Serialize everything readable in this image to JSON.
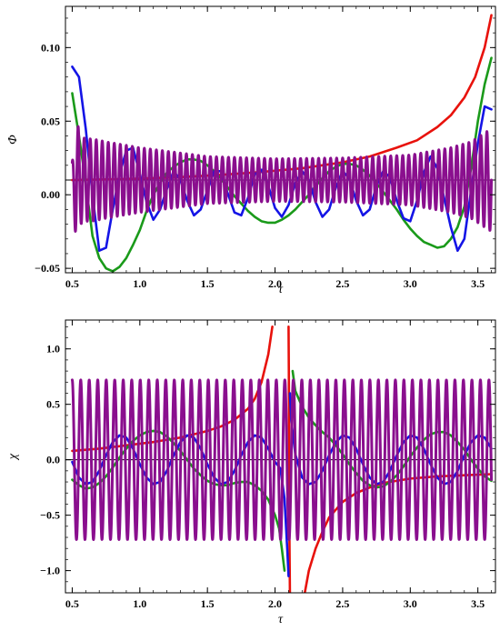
{
  "chart_data": [
    {
      "type": "line",
      "xlabel": "τ",
      "ylabel": "Φ",
      "xlim": [
        0.45,
        3.63
      ],
      "ylim": [
        -0.053,
        0.128
      ],
      "xticks": [
        "0.5",
        "1.0",
        "1.5",
        "2.0",
        "2.5",
        "3.0",
        "3.5"
      ],
      "xtick_values": [
        0.5,
        1.0,
        1.5,
        2.0,
        2.5,
        3.0,
        3.5
      ],
      "yticks": [
        "−0.05",
        "0.00",
        "0.05",
        "0.10"
      ],
      "ytick_values": [
        -0.05,
        0.0,
        0.05,
        0.1
      ],
      "reference_line": 0.01,
      "series": [
        {
          "color": "#e8120c",
          "x": [
            0.5,
            0.8,
            1.0,
            1.3,
            1.6,
            1.9,
            2.2,
            2.5,
            2.7,
            2.9,
            3.05,
            3.2,
            3.3,
            3.4,
            3.48,
            3.55,
            3.6
          ],
          "y": [
            0.01,
            0.0105,
            0.011,
            0.012,
            0.0135,
            0.0155,
            0.018,
            0.022,
            0.026,
            0.032,
            0.037,
            0.046,
            0.054,
            0.066,
            0.08,
            0.1,
            0.122
          ]
        },
        {
          "color": "#1a9a1a",
          "x": [
            0.5,
            0.55,
            0.6,
            0.65,
            0.7,
            0.75,
            0.8,
            0.85,
            0.9,
            0.95,
            1.0,
            1.05,
            1.1,
            1.15,
            1.2,
            1.25,
            1.3,
            1.35,
            1.4,
            1.45,
            1.5,
            1.55,
            1.6,
            1.65,
            1.7,
            1.75,
            1.8,
            1.85,
            1.9,
            1.95,
            2.0,
            2.05,
            2.1,
            2.15,
            2.2,
            2.25,
            2.3,
            2.35,
            2.4,
            2.45,
            2.5,
            2.55,
            2.6,
            2.65,
            2.7,
            2.75,
            2.8,
            2.85,
            2.9,
            2.95,
            3.0,
            3.05,
            3.1,
            3.15,
            3.2,
            3.25,
            3.3,
            3.35,
            3.4,
            3.45,
            3.5,
            3.55,
            3.6
          ],
          "y": [
            0.069,
            0.04,
            0.008,
            -0.028,
            -0.043,
            -0.05,
            -0.052,
            -0.049,
            -0.043,
            -0.034,
            -0.024,
            -0.011,
            0.0,
            0.008,
            0.015,
            0.019,
            0.022,
            0.024,
            0.024,
            0.023,
            0.02,
            0.016,
            0.011,
            0.005,
            -0.001,
            -0.006,
            -0.011,
            -0.015,
            -0.018,
            -0.019,
            -0.019,
            -0.017,
            -0.014,
            -0.01,
            -0.005,
            0.0,
            0.006,
            0.011,
            0.016,
            0.019,
            0.021,
            0.021,
            0.02,
            0.017,
            0.013,
            0.008,
            0.002,
            -0.004,
            -0.01,
            -0.017,
            -0.023,
            -0.028,
            -0.032,
            -0.034,
            -0.036,
            -0.035,
            -0.03,
            -0.022,
            -0.008,
            0.018,
            0.05,
            0.075,
            0.093
          ]
        },
        {
          "color": "#1414e6",
          "x": [
            0.5,
            0.55,
            0.6,
            0.65,
            0.7,
            0.75,
            0.8,
            0.85,
            0.9,
            0.95,
            1.0,
            1.05,
            1.1,
            1.15,
            1.2,
            1.25,
            1.3,
            1.35,
            1.4,
            1.45,
            1.5,
            1.55,
            1.6,
            1.65,
            1.7,
            1.75,
            1.8,
            1.85,
            1.9,
            1.95,
            2.0,
            2.05,
            2.1,
            2.15,
            2.2,
            2.25,
            2.3,
            2.35,
            2.4,
            2.45,
            2.5,
            2.55,
            2.6,
            2.65,
            2.7,
            2.75,
            2.8,
            2.85,
            2.9,
            2.95,
            3.0,
            3.05,
            3.1,
            3.15,
            3.2,
            3.25,
            3.3,
            3.35,
            3.4,
            3.45,
            3.5,
            3.55,
            3.6
          ],
          "y": [
            0.087,
            0.08,
            0.045,
            0.0,
            -0.038,
            -0.036,
            -0.01,
            0.014,
            0.03,
            0.032,
            0.014,
            -0.005,
            -0.017,
            -0.01,
            0.004,
            0.016,
            0.01,
            -0.004,
            -0.014,
            -0.01,
            0.003,
            0.016,
            0.016,
            0.001,
            -0.012,
            -0.014,
            -0.002,
            0.014,
            0.017,
            0.006,
            -0.009,
            -0.015,
            -0.007,
            0.008,
            0.016,
            0.01,
            -0.005,
            -0.015,
            -0.01,
            0.005,
            0.016,
            0.011,
            -0.004,
            -0.014,
            -0.01,
            0.006,
            0.016,
            0.012,
            -0.004,
            -0.016,
            -0.018,
            -0.004,
            0.015,
            0.026,
            0.018,
            -0.002,
            -0.022,
            -0.038,
            -0.03,
            0.003,
            0.035,
            0.06,
            0.058
          ]
        },
        {
          "color": "#8a0f8e",
          "x": [
            0.5,
            0.53,
            0.56,
            0.6,
            0.65,
            0.75,
            1.0,
            1.5,
            2.0,
            2.5,
            3.0,
            3.3,
            3.45,
            3.55,
            3.6
          ],
          "y": [
            0.012,
            0.042,
            0.03,
            0.028,
            0.028,
            0.026,
            0.022,
            0.016,
            0.0145,
            0.015,
            0.017,
            0.022,
            0.026,
            0.032,
            0.035
          ],
          "osc": true,
          "offset": 0.01,
          "freq": 22.5
        }
      ]
    },
    {
      "type": "line",
      "xlabel": "τ",
      "ylabel": "χ",
      "xlim": [
        0.45,
        3.63
      ],
      "ylim": [
        -1.2,
        1.26
      ],
      "xticks": [
        "0.5",
        "1.0",
        "1.5",
        "2.0",
        "2.5",
        "3.0",
        "3.5"
      ],
      "xtick_values": [
        0.5,
        1.0,
        1.5,
        2.0,
        2.5,
        3.0,
        3.5
      ],
      "yticks": [
        "−1.0",
        "−0.5",
        "0.0",
        "0.5",
        "1.0"
      ],
      "ytick_values": [
        -1.0,
        -0.5,
        0.0,
        0.5,
        1.0
      ],
      "reference_line": 0.0,
      "series": [
        {
          "color": "#e8120c",
          "x": [
            0.5,
            0.7,
            0.9,
            1.1,
            1.3,
            1.5,
            1.6,
            1.7,
            1.8,
            1.85,
            1.9,
            1.95,
            1.98
          ],
          "y": [
            0.08,
            0.1,
            0.13,
            0.16,
            0.2,
            0.26,
            0.3,
            0.36,
            0.46,
            0.55,
            0.7,
            0.95,
            1.2
          ]
        },
        {
          "color": "#e8120c",
          "x": [
            2.1,
            2.102,
            2.105,
            2.11
          ],
          "y": [
            1.2,
            0.8,
            -0.5,
            -1.2
          ]
        },
        {
          "color": "#e8120c",
          "x": [
            2.22,
            2.25,
            2.3,
            2.35,
            2.4,
            2.5,
            2.6,
            2.7,
            2.8,
            3.0,
            3.2,
            3.4,
            3.6
          ],
          "y": [
            -1.2,
            -1.0,
            -0.8,
            -0.65,
            -0.52,
            -0.38,
            -0.3,
            -0.25,
            -0.21,
            -0.17,
            -0.15,
            -0.14,
            -0.13
          ]
        },
        {
          "color": "#1a9a1a",
          "x": [
            0.5,
            0.55,
            0.6,
            0.65,
            0.7,
            0.75,
            0.8,
            0.85,
            0.9,
            0.95,
            1.0,
            1.05,
            1.1,
            1.15,
            1.2,
            1.25,
            1.3,
            1.35,
            1.4,
            1.45,
            1.5,
            1.55,
            1.6,
            1.65,
            1.7,
            1.75,
            1.8,
            1.85,
            1.9,
            1.95,
            2.0,
            2.03,
            2.05,
            2.07
          ],
          "y": [
            -0.18,
            -0.23,
            -0.26,
            -0.25,
            -0.21,
            -0.15,
            -0.07,
            0.02,
            0.1,
            0.17,
            0.22,
            0.25,
            0.26,
            0.25,
            0.21,
            0.15,
            0.08,
            0.0,
            -0.08,
            -0.14,
            -0.19,
            -0.22,
            -0.23,
            -0.23,
            -0.21,
            -0.2,
            -0.2,
            -0.23,
            -0.28,
            -0.36,
            -0.5,
            -0.62,
            -0.8,
            -1.0
          ]
        },
        {
          "color": "#1a9a1a",
          "x": [
            2.13,
            2.15,
            2.2,
            2.25,
            2.3,
            2.35,
            2.4,
            2.45,
            2.5,
            2.55,
            2.6,
            2.65,
            2.7,
            2.75,
            2.8,
            2.85,
            2.9,
            2.95,
            3.0,
            3.05,
            3.1,
            3.15,
            3.2,
            3.25,
            3.3,
            3.35,
            3.4,
            3.45,
            3.5,
            3.55,
            3.6
          ],
          "y": [
            0.8,
            0.62,
            0.48,
            0.38,
            0.31,
            0.25,
            0.2,
            0.13,
            0.05,
            -0.04,
            -0.12,
            -0.19,
            -0.23,
            -0.25,
            -0.24,
            -0.2,
            -0.14,
            -0.06,
            0.03,
            0.11,
            0.18,
            0.23,
            0.25,
            0.25,
            0.22,
            0.16,
            0.09,
            0.0,
            -0.08,
            -0.15,
            -0.19
          ]
        },
        {
          "color": "#1414e6",
          "x": [
            0.5,
            0.55,
            0.6,
            0.65,
            0.7,
            0.75,
            0.8,
            0.85,
            0.9,
            0.95,
            1.0,
            1.05,
            1.1,
            1.15,
            1.2,
            1.25,
            1.3,
            1.35,
            1.4,
            1.45,
            1.5,
            1.55,
            1.6,
            1.65,
            1.7,
            1.75,
            1.8,
            1.85,
            1.9,
            1.95,
            2.0,
            2.04,
            2.07,
            2.09,
            2.1
          ],
          "y": [
            -0.02,
            -0.16,
            -0.22,
            -0.2,
            -0.1,
            0.04,
            0.16,
            0.22,
            0.2,
            0.1,
            -0.04,
            -0.16,
            -0.22,
            -0.2,
            -0.1,
            0.04,
            0.16,
            0.22,
            0.2,
            0.1,
            -0.04,
            -0.16,
            -0.22,
            -0.2,
            -0.1,
            0.04,
            0.16,
            0.22,
            0.2,
            0.1,
            -0.02,
            -0.08,
            -0.35,
            -0.8,
            -1.05
          ]
        },
        {
          "color": "#1414e6",
          "x": [
            2.11,
            2.12,
            2.15,
            2.2,
            2.25,
            2.3,
            2.35,
            2.4,
            2.45,
            2.5,
            2.55,
            2.6,
            2.65,
            2.7,
            2.75,
            2.8,
            2.85,
            2.9,
            2.95,
            3.0,
            3.05,
            3.1,
            3.15,
            3.2,
            3.25,
            3.3,
            3.35,
            3.4,
            3.45,
            3.5,
            3.55,
            3.6
          ],
          "y": [
            0.6,
            0.35,
            0.05,
            -0.16,
            -0.22,
            -0.2,
            -0.1,
            0.04,
            0.16,
            0.22,
            0.2,
            0.1,
            -0.04,
            -0.16,
            -0.22,
            -0.2,
            -0.1,
            0.04,
            0.16,
            0.22,
            0.2,
            0.1,
            -0.04,
            -0.16,
            -0.22,
            -0.2,
            -0.1,
            0.04,
            0.16,
            0.22,
            0.2,
            0.1
          ]
        },
        {
          "color": "#8a0f8e",
          "x": [
            0.5,
            3.6
          ],
          "y": [
            0.72,
            0.72
          ],
          "osc": true,
          "offset": 0.0,
          "freq": 15.9
        }
      ]
    }
  ]
}
